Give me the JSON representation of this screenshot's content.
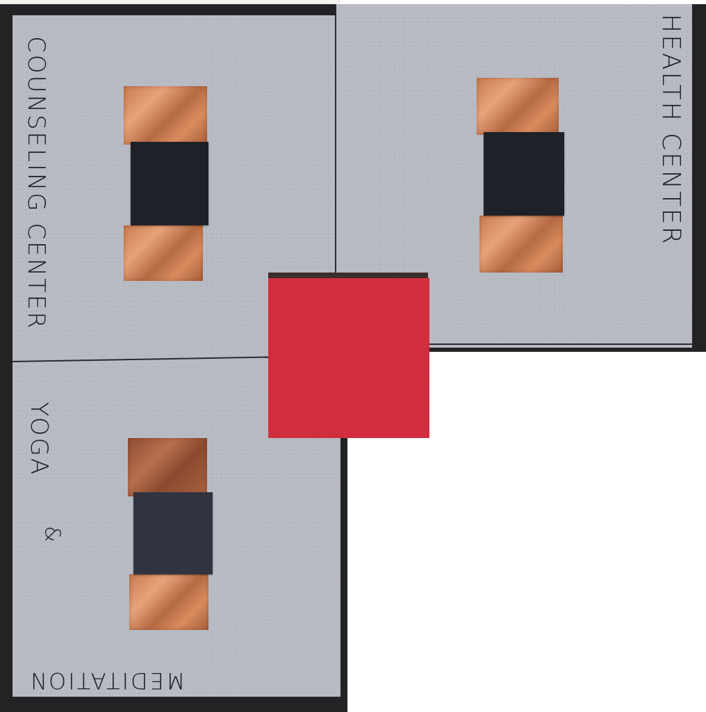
{
  "labels": {
    "counseling": "COUNSELING CENTER",
    "health": "HEALTH CENTER",
    "yoga": "YOGA",
    "and": "&",
    "meditation": "MEDITATION"
  },
  "colors": {
    "board": "#232326",
    "card": "#b7bac3",
    "copper": "#c87a4e",
    "pad": "#1e2128",
    "center_square": "#d02b3c"
  }
}
